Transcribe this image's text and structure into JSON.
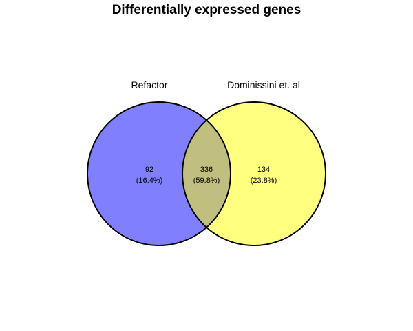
{
  "title": "Differentially expressed genes",
  "sets": [
    {
      "label": "Refactor",
      "color": "#8080FF"
    },
    {
      "label": "Dominissini et. al",
      "color": "#FFFF80"
    }
  ],
  "overlap_color": "#C0BF80",
  "regions": {
    "left_only": {
      "count": "92",
      "percent": "(16.4%)"
    },
    "both": {
      "count": "336",
      "percent": "(59.8%)"
    },
    "right_only": {
      "count": "134",
      "percent": "(23.8%)"
    }
  }
}
